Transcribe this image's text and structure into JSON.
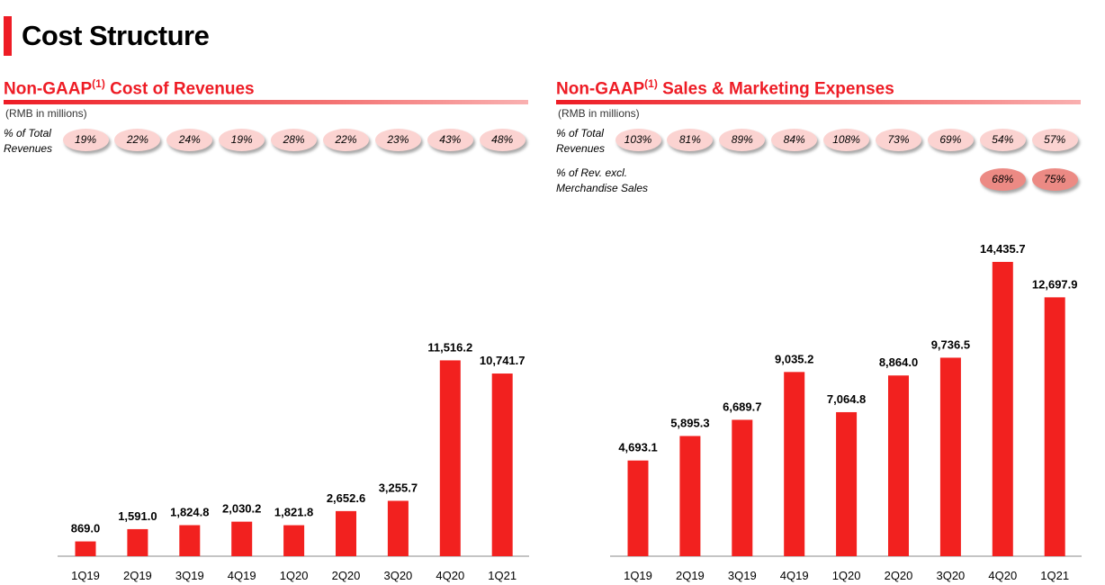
{
  "page": {
    "title": "Cost Structure"
  },
  "panels": [
    {
      "title": "Non-GAAP",
      "title_sup": "(1)",
      "title_rest": " Cost of Revenues",
      "unit": "(RMB in millions)",
      "rows": [
        {
          "label_lines": [
            "% of Total",
            "Revenues"
          ],
          "values": [
            "19%",
            "22%",
            "24%",
            "19%",
            "28%",
            "22%",
            "23%",
            "43%",
            "48%"
          ]
        }
      ]
    },
    {
      "title": "Non-GAAP",
      "title_sup": "(1)",
      "title_rest": " Sales & Marketing Expenses",
      "unit": "(RMB in millions)",
      "rows": [
        {
          "label_lines": [
            "% of Total",
            "Revenues"
          ],
          "values": [
            "103%",
            "81%",
            "89%",
            "84%",
            "108%",
            "73%",
            "69%",
            "54%",
            "57%"
          ]
        },
        {
          "label_lines": [
            "% of Rev. excl.",
            "Merchandise Sales"
          ],
          "values": [
            "",
            "",
            "",
            "",
            "",
            "",
            "",
            "68%",
            "75%"
          ]
        }
      ]
    }
  ],
  "chart_data": [
    {
      "type": "bar",
      "title": "Non-GAAP(1) Cost of Revenues",
      "categories": [
        "1Q19",
        "2Q19",
        "3Q19",
        "4Q19",
        "1Q20",
        "2Q20",
        "3Q20",
        "4Q20",
        "1Q21"
      ],
      "values": [
        869.0,
        1591.0,
        1824.8,
        2030.2,
        1821.8,
        2652.6,
        3255.7,
        11516.2,
        10741.7
      ],
      "value_labels": [
        "869.0",
        "1,591.0",
        "1,824.8",
        "2,030.2",
        "1,821.8",
        "2,652.6",
        "3,255.7",
        "11,516.2",
        "10,741.7"
      ],
      "ylabel": "RMB in millions",
      "ylim": [
        0,
        16000
      ],
      "grid": false,
      "colors": {
        "bar": "#f2211f"
      }
    },
    {
      "type": "bar",
      "title": "Non-GAAP(1) Sales & Marketing Expenses",
      "categories": [
        "1Q19",
        "2Q19",
        "3Q19",
        "4Q19",
        "1Q20",
        "2Q20",
        "3Q20",
        "4Q20",
        "1Q21"
      ],
      "values": [
        4693.1,
        5895.3,
        6689.7,
        9035.2,
        7064.8,
        8864.0,
        9736.5,
        14435.7,
        12697.9
      ],
      "value_labels": [
        "4,693.1",
        "5,895.3",
        "6,689.7",
        "9,035.2",
        "7,064.8",
        "8,864.0",
        "9,736.5",
        "14,435.7",
        "12,697.9"
      ],
      "ylabel": "RMB in millions",
      "ylim": [
        0,
        16000
      ],
      "grid": false,
      "colors": {
        "bar": "#f2211f"
      }
    }
  ]
}
